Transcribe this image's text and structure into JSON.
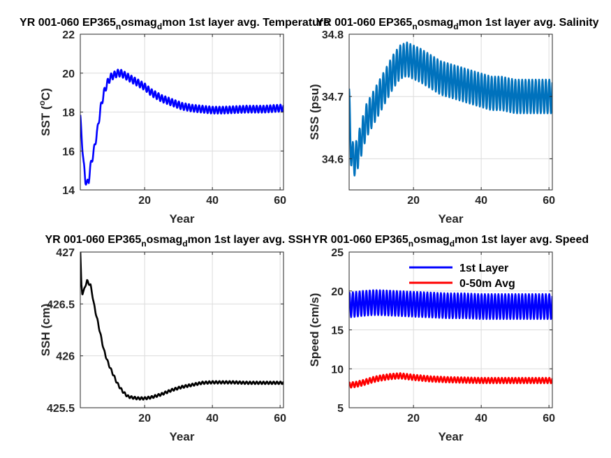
{
  "window": {
    "background": "#ffffff"
  },
  "chart_data": [
    {
      "type": "line",
      "title_parts": [
        "YR 001-060 EP365",
        "n",
        "osmag",
        "d",
        "mon 1st layer avg. Temperature"
      ],
      "xlabel": "Year",
      "ylabel": "SST (",
      "ylabel_sup": "o",
      "ylabel_tail": "C)",
      "xlim": [
        1,
        61
      ],
      "ylim": [
        14,
        22
      ],
      "xticks": [
        20,
        40,
        60
      ],
      "yticks": [
        14,
        16,
        18,
        20,
        22
      ],
      "ytick_decimals": 0,
      "grid": true,
      "series": [
        {
          "color": "#0000ff",
          "x": [
            1.0,
            1.5,
            2,
            2.5,
            3,
            3.5,
            4,
            5,
            6,
            7,
            8,
            9,
            10,
            11,
            12,
            13,
            14,
            16,
            18,
            20,
            22,
            25,
            28,
            31,
            34,
            37,
            40,
            43,
            46,
            50,
            55,
            60,
            61
          ],
          "y": [
            17.7,
            16.5,
            15.3,
            14.5,
            14.3,
            14.5,
            15.2,
            16.0,
            17.0,
            18.2,
            19.0,
            19.5,
            19.8,
            19.9,
            20.0,
            20.0,
            19.9,
            19.7,
            19.5,
            19.3,
            19.0,
            18.7,
            18.5,
            18.3,
            18.2,
            18.15,
            18.1,
            18.1,
            18.12,
            18.15,
            18.15,
            18.2,
            18.2
          ],
          "amplitude": 0.18
        }
      ]
    },
    {
      "type": "line",
      "title_parts": [
        "YR 001-060 EP365",
        "n",
        "osmag",
        "d",
        "mon 1st layer avg. Salinity"
      ],
      "xlabel": "Year",
      "ylabel": "SSS (psu)",
      "xlim": [
        1,
        61
      ],
      "ylim": [
        34.55,
        34.8
      ],
      "xticks": [
        20,
        40,
        60
      ],
      "yticks": [
        34.6,
        34.7,
        34.8
      ],
      "ytick_decimals": 1,
      "grid": true,
      "series": [
        {
          "color": "#0072bd",
          "x": [
            1.0,
            1.5,
            2,
            3,
            4,
            5,
            6,
            8,
            10,
            12,
            14,
            16,
            18,
            20,
            22,
            25,
            28,
            31,
            34,
            37,
            40,
            43,
            46,
            50,
            55,
            60,
            61
          ],
          "y": [
            34.69,
            34.62,
            34.6,
            34.6,
            34.62,
            34.64,
            34.66,
            34.68,
            34.7,
            34.72,
            34.74,
            34.755,
            34.76,
            34.755,
            34.75,
            34.74,
            34.73,
            34.725,
            34.72,
            34.715,
            34.71,
            34.705,
            34.705,
            34.7,
            34.7,
            34.7,
            34.7
          ],
          "amplitude": 0.027
        }
      ]
    },
    {
      "type": "line",
      "title_parts": [
        "YR 001-060 EP365",
        "n",
        "osmag",
        "d",
        "mon 1st layer avg. SSH"
      ],
      "xlabel": "Year",
      "ylabel": "SSH (cm)",
      "xlim": [
        1,
        61
      ],
      "ylim": [
        425.5,
        427
      ],
      "xticks": [
        20,
        40,
        60
      ],
      "yticks": [
        425.5,
        426,
        426.5,
        427
      ],
      "ytick_decimals": -1,
      "grid": true,
      "series": [
        {
          "color": "#000000",
          "x": [
            1.0,
            1.3,
            1.6,
            2,
            2.5,
            3,
            3.5,
            4,
            4.5,
            5,
            6,
            7,
            8,
            9,
            10,
            11,
            12,
            13,
            14,
            15,
            16,
            18,
            20,
            22,
            25,
            28,
            31,
            34,
            37,
            40,
            43,
            46,
            50,
            55,
            60,
            61
          ],
          "y": [
            427.0,
            426.7,
            426.6,
            426.62,
            426.68,
            426.72,
            426.7,
            426.68,
            426.6,
            426.5,
            426.35,
            426.2,
            426.05,
            425.95,
            425.87,
            425.8,
            425.73,
            425.68,
            425.64,
            425.61,
            425.6,
            425.59,
            425.59,
            425.6,
            425.63,
            425.67,
            425.7,
            425.72,
            425.74,
            425.745,
            425.745,
            425.745,
            425.74,
            425.74,
            425.74,
            425.74
          ],
          "amplitude": 0.012
        }
      ]
    },
    {
      "type": "line",
      "title_parts": [
        "YR 001-060 EP365",
        "n",
        "osmag",
        "d",
        "mon 1st layer avg. Speed"
      ],
      "xlabel": "Year",
      "ylabel": "Speed (cm/s)",
      "xlim": [
        1,
        61
      ],
      "ylim": [
        5,
        25
      ],
      "xticks": [
        20,
        40,
        60
      ],
      "yticks": [
        5,
        10,
        15,
        20,
        25
      ],
      "ytick_decimals": 0,
      "grid": true,
      "legend": "top-center",
      "series": [
        {
          "name": "1st Layer",
          "color": "#0000ff",
          "x": [
            1,
            3,
            5,
            8,
            10,
            15,
            20,
            25,
            30,
            35,
            40,
            45,
            50,
            55,
            60,
            61
          ],
          "y": [
            18.2,
            18.3,
            18.4,
            18.5,
            18.5,
            18.4,
            18.3,
            18.2,
            18.1,
            18.1,
            18.0,
            18.0,
            18.0,
            18.0,
            18.0,
            18.0
          ],
          "amplitude": 1.6
        },
        {
          "name": "0-50m Avg",
          "color": "#ff0000",
          "x": [
            1,
            3,
            5,
            8,
            10,
            13,
            16,
            20,
            25,
            30,
            40,
            50,
            60,
            61
          ],
          "y": [
            7.9,
            8.0,
            8.2,
            8.6,
            8.8,
            9.0,
            9.1,
            8.9,
            8.7,
            8.6,
            8.5,
            8.5,
            8.5,
            8.5
          ],
          "amplitude": 0.35
        }
      ]
    }
  ]
}
